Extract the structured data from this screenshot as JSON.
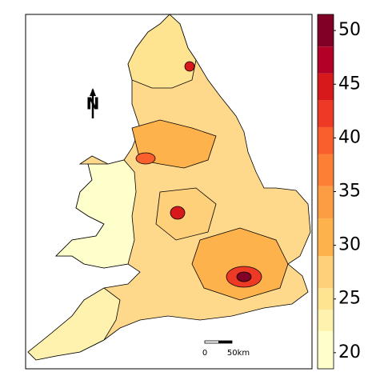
{
  "legend": {
    "ticks": [
      20,
      25,
      30,
      35,
      40,
      45,
      50
    ],
    "lim": [
      18.5,
      51.5
    ],
    "bins": [
      18.5,
      22,
      24,
      26,
      29,
      32.5,
      35.5,
      38.5,
      41,
      43.5,
      46,
      48.5,
      51.5
    ],
    "colors": [
      "#ffffcc",
      "#fff2ae",
      "#fee391",
      "#fed07a",
      "#feb24c",
      "#fd9d43",
      "#fd7e35",
      "#f95f2c",
      "#ee3a24",
      "#d7191c",
      "#b30026",
      "#800026"
    ]
  },
  "scale_bar": {
    "labels": [
      "0",
      "50km"
    ]
  },
  "north_arrow": {
    "label": "N"
  }
}
